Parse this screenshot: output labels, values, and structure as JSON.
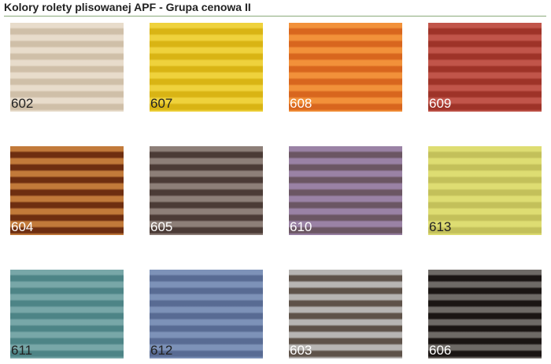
{
  "title": "Kolory rolety plisowanej APF - Grupa cenowa II",
  "swatches": [
    {
      "code": "602",
      "light": "#e8dccb",
      "dark": "#cfbfa8",
      "text": "#222222"
    },
    {
      "code": "607",
      "light": "#efd23c",
      "dark": "#d9b414",
      "text": "#222222"
    },
    {
      "code": "608",
      "light": "#f2913a",
      "dark": "#d8661e",
      "text": "#ffffff"
    },
    {
      "code": "609",
      "light": "#c1554a",
      "dark": "#9e3328",
      "text": "#ffffff"
    },
    {
      "code": "604",
      "light": "#c27a3a",
      "dark": "#6e2e10",
      "text": "#ffffff"
    },
    {
      "code": "605",
      "light": "#8d7f78",
      "dark": "#4b3b36",
      "text": "#ffffff"
    },
    {
      "code": "610",
      "light": "#9a82a5",
      "dark": "#6b5663",
      "text": "#ffffff"
    },
    {
      "code": "613",
      "light": "#dedd72",
      "dark": "#c3c05a",
      "text": "#222222"
    },
    {
      "code": "611",
      "light": "#78a7a8",
      "dark": "#4d8486",
      "text": "#222222"
    },
    {
      "code": "612",
      "light": "#7d92b8",
      "dark": "#586b93",
      "text": "#222222"
    },
    {
      "code": "603",
      "light": "#b7b5b3",
      "dark": "#5e5249",
      "text": "#ffffff"
    },
    {
      "code": "606",
      "light": "#6e6a66",
      "dark": "#1a1513",
      "text": "#ffffff"
    }
  ]
}
